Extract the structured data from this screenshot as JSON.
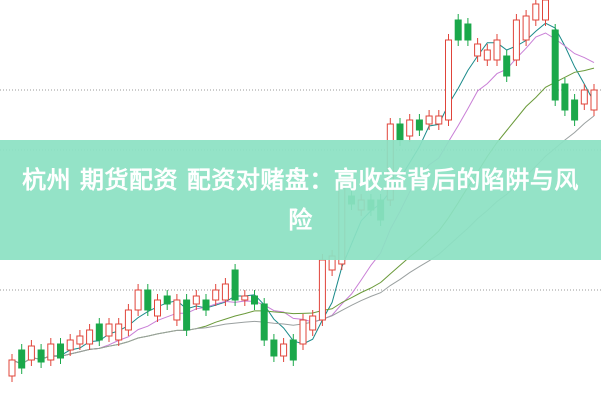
{
  "title": "杭州 期货配资 配资对赌盘：高收益背后的陷阱与风险",
  "colors": {
    "banner": "#8ce1c3",
    "up": "#e0443a",
    "down": "#1aa84a",
    "ma5": "#1a8a8a",
    "ma10": "#c97fd6",
    "ma20": "#6a9a3a",
    "ma30": "#9aa0a0"
  },
  "candles": [
    [
      6,
      10
    ],
    [
      12.5,
      8
    ],
    [
      10,
      13.5
    ],
    [
      12.5,
      9.5
    ],
    [
      10,
      14
    ],
    [
      14,
      10.5
    ],
    [
      12.5,
      15
    ],
    [
      14,
      16
    ],
    [
      14,
      17.5
    ],
    [
      19,
      15
    ],
    [
      16,
      19
    ],
    [
      15,
      19
    ],
    [
      17.5,
      22.5
    ],
    [
      22.5,
      27.5
    ],
    [
      27.5,
      22.5
    ],
    [
      21,
      25
    ],
    [
      26,
      24
    ],
    [
      20,
      25
    ],
    [
      25,
      17.5
    ],
    [
      24,
      26
    ],
    [
      25,
      22.5
    ],
    [
      25,
      27.5
    ],
    [
      25,
      29
    ],
    [
      32.5,
      25
    ],
    [
      25,
      26
    ],
    [
      26,
      24
    ],
    [
      24,
      15
    ],
    [
      15,
      11
    ],
    [
      11,
      14
    ],
    [
      15,
      10
    ],
    [
      14,
      20
    ],
    [
      17.5,
      21
    ],
    [
      20,
      35
    ],
    [
      32.5,
      36
    ],
    [
      34,
      54
    ],
    [
      51,
      49
    ],
    [
      47.5,
      50
    ],
    [
      50,
      47.5
    ],
    [
      50,
      45
    ],
    [
      50,
      69
    ],
    [
      69,
      65
    ],
    [
      66,
      70
    ],
    [
      70,
      67.5
    ],
    [
      69,
      71
    ],
    [
      69,
      71
    ],
    [
      70,
      90
    ],
    [
      95,
      90
    ],
    [
      94,
      90
    ],
    [
      86,
      89
    ],
    [
      85,
      87.5
    ],
    [
      85,
      90
    ],
    [
      86,
      81
    ],
    [
      85,
      95
    ],
    [
      90,
      96
    ],
    [
      95,
      99
    ],
    [
      95,
      100
    ],
    [
      92.5,
      75
    ],
    [
      79,
      72.5
    ],
    [
      75,
      70
    ],
    [
      74,
      77.5
    ],
    [
      72.5,
      77.5
    ]
  ]
}
